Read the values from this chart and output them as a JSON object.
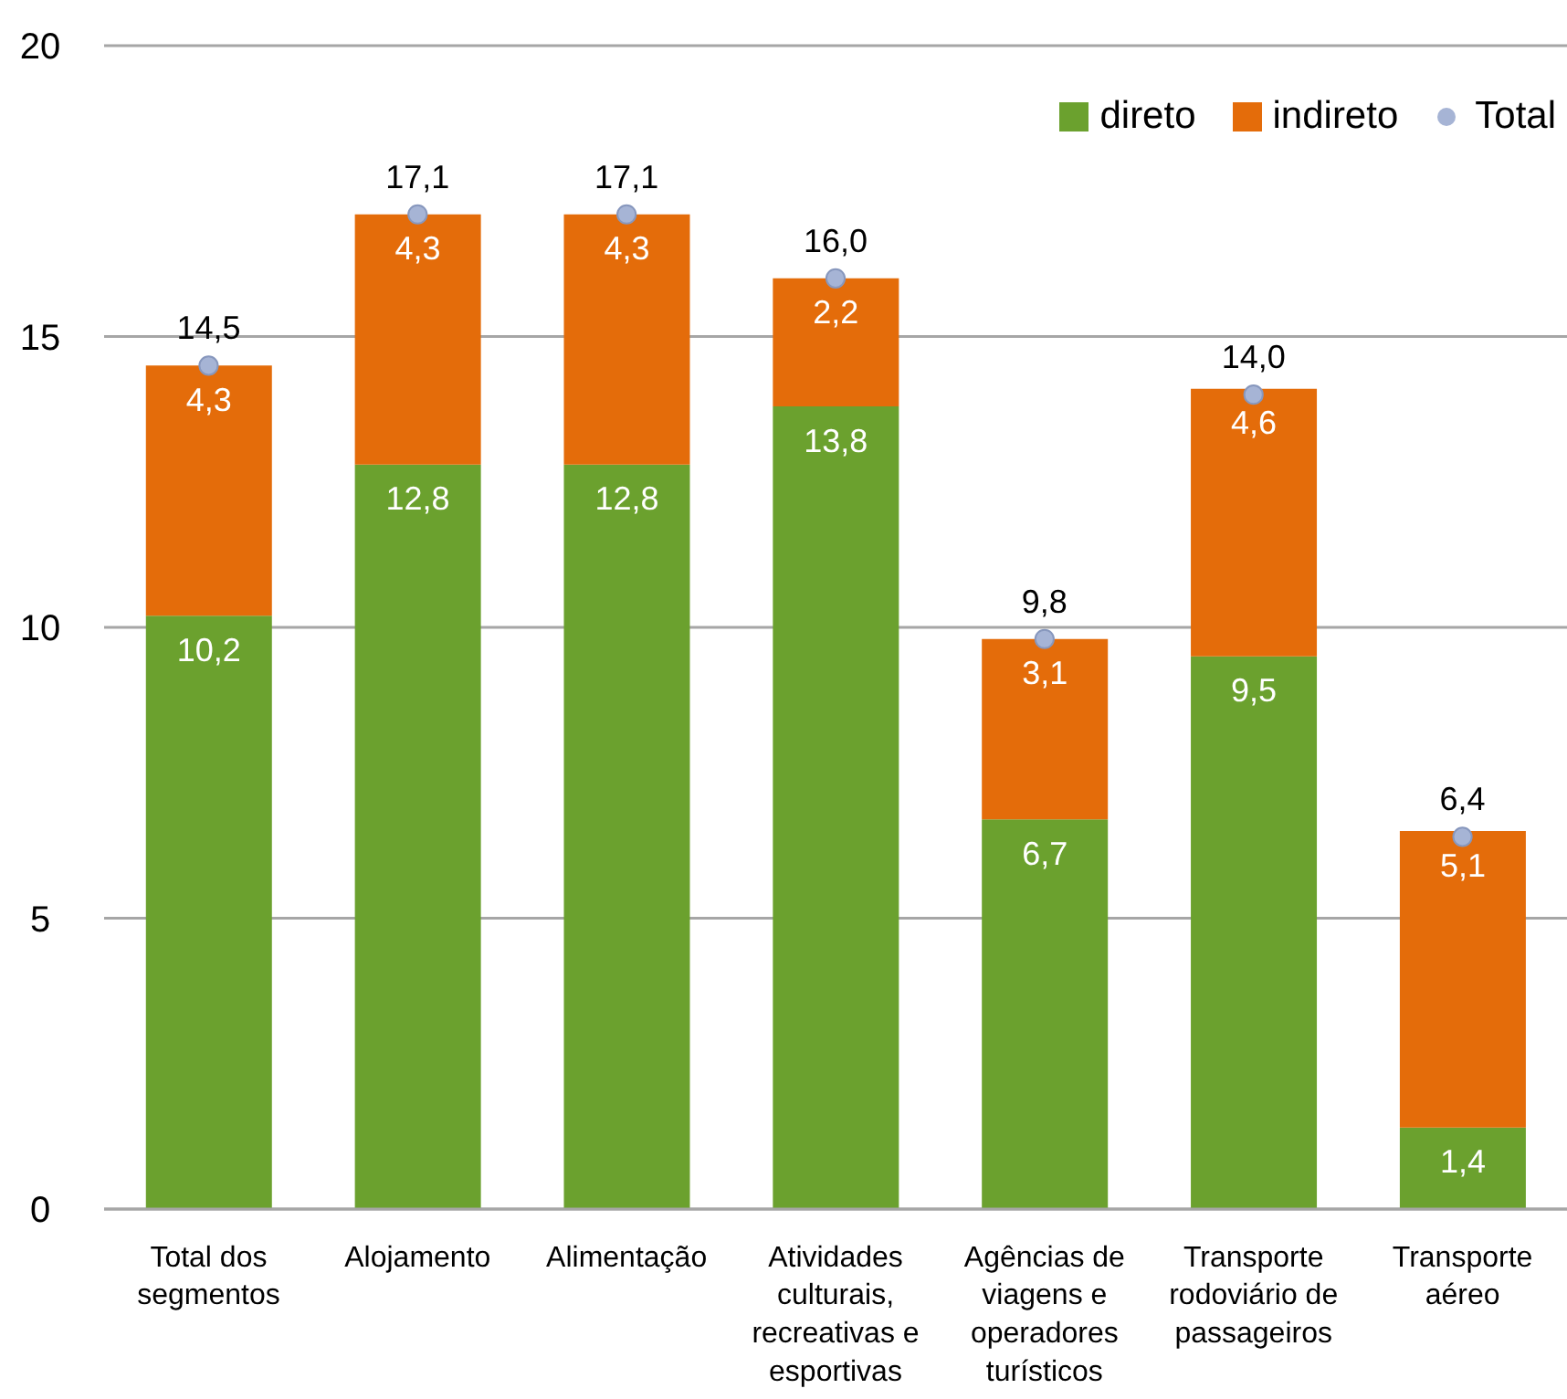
{
  "chart_data": {
    "type": "bar",
    "stacked": true,
    "categories": [
      "Total dos segmentos",
      "Alojamento",
      "Alimentação",
      "Atividades culturais, recreativas e esportivas",
      "Agências de viagens e operadores turísticos",
      "Transporte rodoviário de passageiros",
      "Transporte aéreo"
    ],
    "series": [
      {
        "name": "direto",
        "color": "#6ba12e",
        "values": [
          10.2,
          12.8,
          12.8,
          13.8,
          6.7,
          9.5,
          1.4
        ],
        "value_labels": [
          "10,2",
          "12,8",
          "12,8",
          "13,8",
          "6,7",
          "9,5",
          "1,4"
        ]
      },
      {
        "name": "indireto",
        "color": "#e46c0a",
        "values": [
          4.3,
          4.3,
          4.3,
          2.2,
          3.1,
          4.6,
          5.1
        ],
        "value_labels": [
          "4,3",
          "4,3",
          "4,3",
          "2,2",
          "3,1",
          "4,6",
          "5,1"
        ]
      },
      {
        "name": "Total",
        "type": "scatter",
        "color": "#a6b4d5",
        "marker": "circle",
        "x": [
          "Total dos segmentos",
          "Alojamento",
          "Alimentação",
          "Atividades culturais, recreativas e esportivas",
          "Agências de viagens e operadores turísticos",
          "Transporte rodoviário de passageiros",
          "Transporte aéreo"
        ],
        "values": [
          14.5,
          17.1,
          17.1,
          16.0,
          9.8,
          14.0,
          6.4
        ],
        "value_labels": [
          "14,5",
          "17,1",
          "17,1",
          "16,0",
          "9,8",
          "14,0",
          "6,4"
        ]
      }
    ],
    "ylim": [
      0,
      20
    ],
    "yticks": [
      0,
      5,
      10,
      15,
      20
    ],
    "grid": "y",
    "legend": "top right"
  }
}
